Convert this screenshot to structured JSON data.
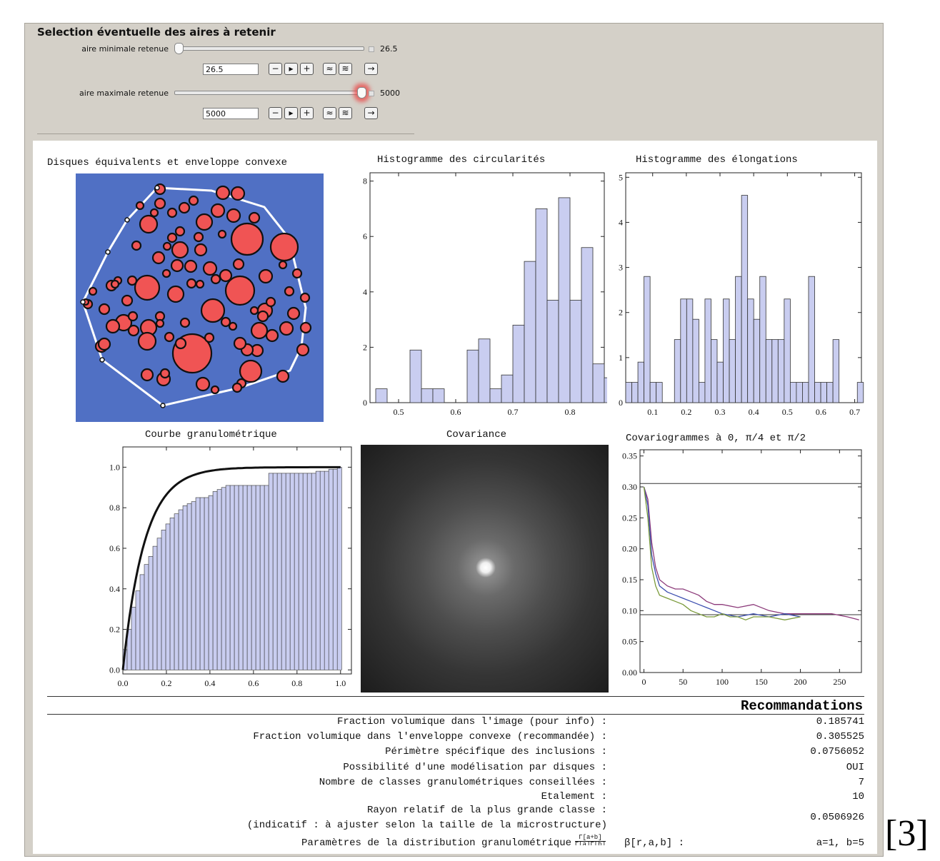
{
  "controls": {
    "title": "Selection éventuelle des aires à retenir",
    "min": {
      "label": "aire minimale retenue",
      "value": "26.5",
      "slider_fraction": 0.0
    },
    "max": {
      "label": "aire maximale retenue",
      "value": "5000",
      "slider_fraction": 1.0
    },
    "buttons": [
      "−",
      "▸",
      "+",
      "≈",
      "≋",
      "→"
    ]
  },
  "plots": {
    "disks_title": "Disques équivalents et enveloppe convexe",
    "circ_title": "Histogramme des circularités",
    "elong_title": "Histogramme des élongations",
    "gran_title": "Courbe granulométrique",
    "cov_title": "Covariance",
    "covario_title": "Covariogrammes à 0, π/4 et π/2"
  },
  "colors": {
    "hist_fill": "#c9cdf0",
    "disk_bg": "#5070c4",
    "disk_red": "#f05454",
    "purple": "#8c3a7a",
    "blue": "#3d4fb0",
    "green": "#7a9a3a"
  },
  "chart_data": [
    {
      "type": "bar",
      "title": "Histogramme des circularités",
      "x_edges_start": 0.46,
      "bin_width": 0.02,
      "values": [
        0.5,
        0,
        0,
        1.9,
        0.5,
        0.5,
        0,
        0,
        1.9,
        2.3,
        0.5,
        1.0,
        2.8,
        5.1,
        7.0,
        3.7,
        7.4,
        3.7,
        5.6,
        1.4,
        0.9
      ],
      "xlim": [
        0.45,
        0.86
      ],
      "ylim": [
        0,
        8.3
      ],
      "xticks": [
        "0.5",
        "0.6",
        "0.7",
        "0.8"
      ],
      "yticks": [
        "0",
        "2",
        "4",
        "6",
        "8"
      ]
    },
    {
      "type": "bar",
      "title": "Histogramme des élongations",
      "x_edges_start": 0.02,
      "bin_width": 0.02,
      "values": [
        0.45,
        0.45,
        0.9,
        2.8,
        0.45,
        0.45,
        0,
        0,
        1.4,
        2.3,
        2.3,
        1.85,
        0.45,
        2.3,
        1.4,
        0.9,
        2.3,
        1.4,
        2.8,
        4.6,
        2.3,
        1.85,
        2.8,
        1.4,
        1.4,
        1.4,
        2.3,
        0.45,
        0.45,
        0.45,
        2.8,
        0.45,
        0.45,
        0.45,
        1.4,
        0,
        0,
        0,
        0.45
      ],
      "xlim": [
        0.02,
        0.72
      ],
      "ylim": [
        0,
        5.1
      ],
      "xticks": [
        "0.1",
        "0.2",
        "0.3",
        "0.4",
        "0.5",
        "0.6",
        "0.7"
      ],
      "yticks": [
        "0",
        "1",
        "2",
        "3",
        "4",
        "5"
      ]
    },
    {
      "type": "bar",
      "title": "Courbe granulométrique",
      "bin_width": 0.02,
      "values": [
        0.1,
        0.2,
        0.31,
        0.39,
        0.47,
        0.52,
        0.56,
        0.61,
        0.65,
        0.69,
        0.72,
        0.75,
        0.77,
        0.79,
        0.81,
        0.82,
        0.83,
        0.85,
        0.85,
        0.85,
        0.86,
        0.88,
        0.89,
        0.9,
        0.91,
        0.91,
        0.91,
        0.91,
        0.91,
        0.91,
        0.91,
        0.91,
        0.91,
        0.91,
        0.97,
        0.97,
        0.97,
        0.97,
        0.97,
        0.97,
        0.97,
        0.97,
        0.97,
        0.97,
        0.97,
        0.98,
        0.98,
        0.98,
        0.99,
        0.99,
        1.0
      ],
      "curve": {
        "type": "line",
        "form": "1 - exp(-k x)",
        "k": 10
      },
      "xlim": [
        0,
        1.05
      ],
      "ylim": [
        -0.02,
        1.1
      ],
      "xticks": [
        "0.0",
        "0.2",
        "0.4",
        "0.6",
        "0.8",
        "1.0"
      ],
      "yticks": [
        "0.0",
        "0.2",
        "0.4",
        "0.6",
        "0.8",
        "1.0"
      ]
    },
    {
      "type": "line",
      "title": "Covariogrammes à 0, π/4 et π/2",
      "xlim": [
        -5,
        278
      ],
      "ylim": [
        0,
        0.36
      ],
      "hlines": [
        0.3055,
        0.0935
      ],
      "xticks": [
        "0",
        "50",
        "100",
        "150",
        "200",
        "250"
      ],
      "yticks": [
        "0.00",
        "0.05",
        "0.10",
        "0.15",
        "0.20",
        "0.25",
        "0.30",
        "0.35"
      ],
      "series": [
        {
          "color": "#8c3a7a",
          "x": [
            0,
            5,
            10,
            15,
            20,
            30,
            40,
            50,
            60,
            70,
            80,
            90,
            100,
            120,
            140,
            160,
            180,
            200,
            220,
            240,
            260,
            275
          ],
          "y": [
            0.3,
            0.28,
            0.21,
            0.17,
            0.15,
            0.14,
            0.135,
            0.135,
            0.13,
            0.125,
            0.115,
            0.11,
            0.11,
            0.105,
            0.11,
            0.1,
            0.095,
            0.095,
            0.095,
            0.095,
            0.09,
            0.085
          ]
        },
        {
          "color": "#3d4fb0",
          "x": [
            0,
            5,
            10,
            15,
            20,
            30,
            40,
            50,
            60,
            70,
            80,
            90,
            100,
            120,
            140,
            160,
            180,
            200
          ],
          "y": [
            0.3,
            0.27,
            0.19,
            0.16,
            0.14,
            0.13,
            0.125,
            0.12,
            0.115,
            0.11,
            0.105,
            0.1,
            0.095,
            0.09,
            0.095,
            0.09,
            0.095,
            0.09
          ]
        },
        {
          "color": "#7a9a3a",
          "x": [
            0,
            5,
            10,
            15,
            20,
            30,
            40,
            50,
            60,
            70,
            80,
            90,
            100,
            110,
            120,
            130,
            140,
            160,
            180,
            200
          ],
          "y": [
            0.3,
            0.25,
            0.17,
            0.14,
            0.125,
            0.12,
            0.115,
            0.11,
            0.1,
            0.095,
            0.09,
            0.09,
            0.095,
            0.09,
            0.09,
            0.085,
            0.09,
            0.09,
            0.085,
            0.09
          ]
        }
      ]
    }
  ],
  "recommandations": {
    "title": "Recommandations",
    "rows": [
      {
        "label": "Fraction volumique dans l'image (pour info) :",
        "value": "0.185741"
      },
      {
        "label": "Fraction volumique dans l'enveloppe convexe (recommandée) :",
        "value": "0.305525"
      },
      {
        "label": "Périmètre spécifique des inclusions :",
        "value": "0.0756052"
      },
      {
        "label": "Possibilité d'une modélisation par disques :",
        "value": "OUI"
      },
      {
        "label": "Nombre de classes granulométriques conseillées :",
        "value": "7"
      },
      {
        "label": "Etalement :",
        "value": "10"
      },
      {
        "label": "Rayon relatif de la plus grande classe :",
        "value": "0.0506926"
      },
      {
        "label": "(indicatif : à ajuster selon la taille de la microstructure)",
        "value": ""
      },
      {
        "label": "Paramètres de la distribution granulométrique",
        "frac_num": "Γ[a+b]",
        "frac_den": "Γ[a]Γ[b]",
        "beta": "β[r,a,b] :",
        "value": "a=1, b=5"
      }
    ]
  },
  "reference": "[3]"
}
